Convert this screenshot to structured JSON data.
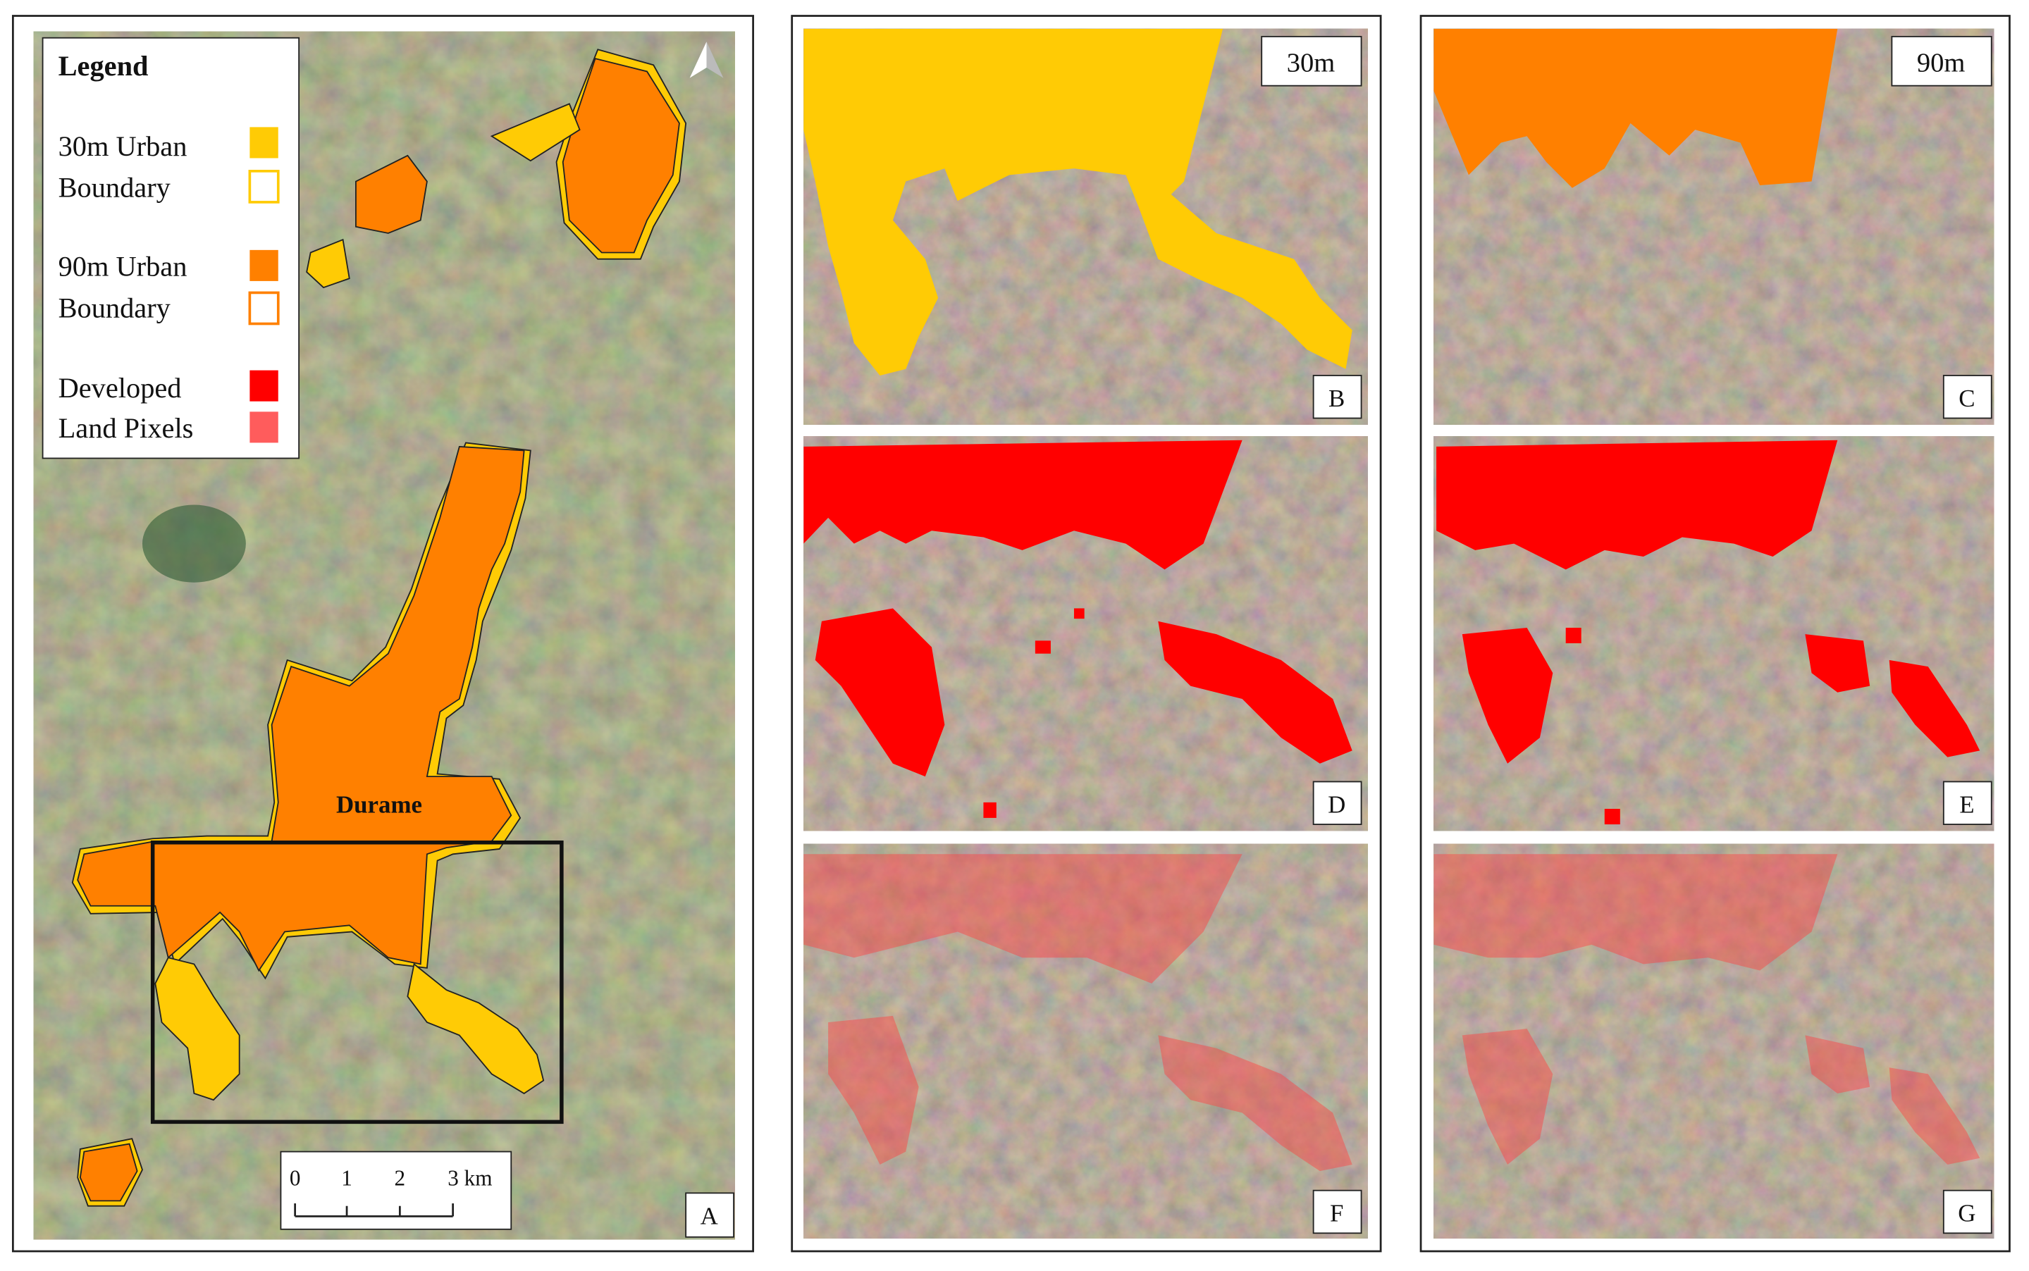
{
  "legend": {
    "title": "Legend",
    "items": [
      {
        "line1": "30m Urban",
        "line2": "Boundary"
      },
      {
        "line1": "90m Urban",
        "line2": "Boundary"
      },
      {
        "line1": "Developed",
        "line2": "Land Pixels"
      }
    ]
  },
  "map": {
    "place": "Durame",
    "scale_labels": [
      "0",
      "1",
      "2",
      "3 km"
    ]
  },
  "panels": [
    {
      "label": "A"
    },
    {
      "label": "B",
      "tag": "30m"
    },
    {
      "label": "C",
      "tag": "90m"
    },
    {
      "label": "D"
    },
    {
      "label": "E"
    },
    {
      "label": "F"
    },
    {
      "label": "G"
    }
  ]
}
